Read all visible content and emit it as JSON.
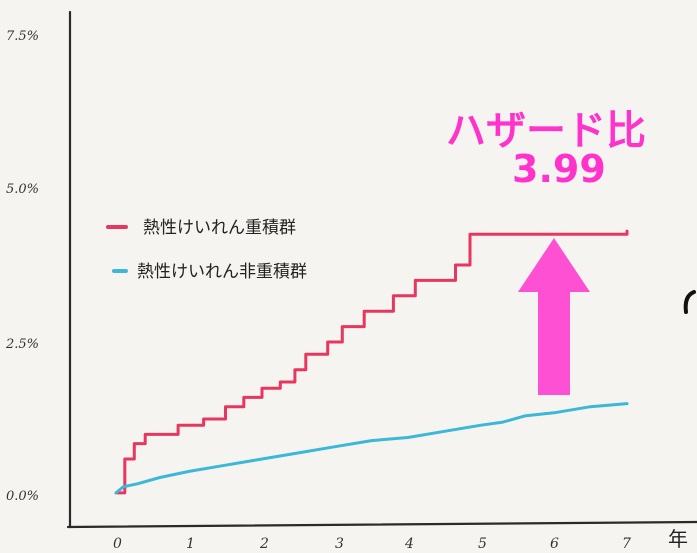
{
  "chart_data": {
    "type": "line",
    "x_ticks": [
      "0",
      "1",
      "2",
      "3",
      "4",
      "5",
      "6",
      "7"
    ],
    "y_ticks": [
      "0.0%",
      "2.5%",
      "5.0%",
      "7.5%"
    ],
    "x_unit": "年",
    "xlim": [
      0,
      7
    ],
    "ylim": [
      0,
      7.5
    ],
    "grid": false,
    "legend_position": "left-middle",
    "series": [
      {
        "name": "熱性けいれん重積群",
        "color": "#e8365f",
        "step": true,
        "points": [
          [
            0,
            0.05
          ],
          [
            0.12,
            0.6
          ],
          [
            0.25,
            0.85
          ],
          [
            0.4,
            1.0
          ],
          [
            0.6,
            1.0
          ],
          [
            0.85,
            1.15
          ],
          [
            1.2,
            1.25
          ],
          [
            1.5,
            1.45
          ],
          [
            1.75,
            1.6
          ],
          [
            2.0,
            1.75
          ],
          [
            2.25,
            1.85
          ],
          [
            2.45,
            2.05
          ],
          [
            2.6,
            2.3
          ],
          [
            2.9,
            2.5
          ],
          [
            3.1,
            2.75
          ],
          [
            3.4,
            3.0
          ],
          [
            3.8,
            3.25
          ],
          [
            4.1,
            3.5
          ],
          [
            4.65,
            3.75
          ],
          [
            4.85,
            4.25
          ],
          [
            5.0,
            4.25
          ],
          [
            7.0,
            4.3
          ]
        ]
      },
      {
        "name": "熱性けいれん非重積群",
        "color": "#3bb8d8",
        "step": false,
        "points": [
          [
            0,
            0.05
          ],
          [
            0.1,
            0.15
          ],
          [
            0.3,
            0.2
          ],
          [
            0.6,
            0.3
          ],
          [
            1.0,
            0.4
          ],
          [
            1.5,
            0.5
          ],
          [
            2.0,
            0.6
          ],
          [
            2.5,
            0.7
          ],
          [
            3.0,
            0.8
          ],
          [
            3.5,
            0.9
          ],
          [
            4.0,
            0.95
          ],
          [
            4.5,
            1.05
          ],
          [
            5.0,
            1.15
          ],
          [
            5.3,
            1.2
          ],
          [
            5.6,
            1.3
          ],
          [
            6.0,
            1.35
          ],
          [
            6.5,
            1.45
          ],
          [
            7.0,
            1.5
          ]
        ]
      }
    ],
    "annotation": {
      "title": "ハザード比",
      "value": "3.99",
      "color": "#ff33cc"
    }
  }
}
